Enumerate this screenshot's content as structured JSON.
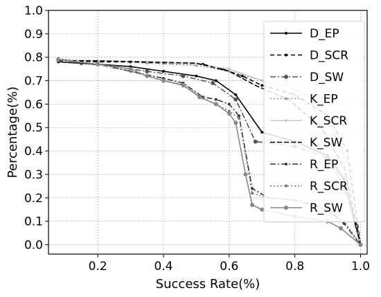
{
  "chart_data": {
    "type": "line",
    "xlabel": "Success Rate(%)",
    "ylabel": "Percentage(%)",
    "xlim": [
      0.05,
      1.02
    ],
    "ylim": [
      -0.04,
      1.0
    ],
    "xticks": [
      "0.2",
      "0.4",
      "0.6",
      "0.8",
      "1.0"
    ],
    "yticks": [
      "0.0",
      "0.1",
      "0.2",
      "0.3",
      "0.4",
      "0.5",
      "0.6",
      "0.7",
      "0.8",
      "0.9",
      "1.0"
    ],
    "grid": true,
    "legend_position": "right",
    "series": [
      {
        "name": "D_EP",
        "color": "#000000",
        "dash": "",
        "marker": "dot",
        "x": [
          0.08,
          0.2,
          0.3,
          0.4,
          0.5,
          0.56,
          0.62,
          0.7,
          0.8,
          0.9,
          0.95,
          1.0
        ],
        "y": [
          0.78,
          0.77,
          0.76,
          0.74,
          0.72,
          0.7,
          0.64,
          0.48,
          0.44,
          0.38,
          0.28,
          0.0
        ]
      },
      {
        "name": "D_SCR",
        "color": "#000000",
        "dash": "6,4",
        "marker": "dot",
        "x": [
          0.08,
          0.2,
          0.3,
          0.4,
          0.52,
          0.58,
          0.64,
          0.7,
          0.8,
          0.9,
          0.96,
          1.0
        ],
        "y": [
          0.79,
          0.78,
          0.78,
          0.775,
          0.77,
          0.75,
          0.72,
          0.68,
          0.64,
          0.55,
          0.4,
          0.0
        ]
      },
      {
        "name": "D_SW",
        "color": "#555555",
        "dash": "8,3,2,3",
        "marker": "circle",
        "x": [
          0.08,
          0.15,
          0.25,
          0.35,
          0.46,
          0.55,
          0.62,
          0.68,
          0.8,
          0.9,
          0.95,
          1.0
        ],
        "y": [
          0.79,
          0.775,
          0.76,
          0.74,
          0.72,
          0.69,
          0.62,
          0.44,
          0.42,
          0.37,
          0.25,
          0.0
        ]
      },
      {
        "name": "K_EP",
        "color": "#999999",
        "dash": "2,3",
        "marker": "dot",
        "x": [
          0.08,
          0.2,
          0.35,
          0.5,
          0.6,
          0.7,
          0.8,
          0.9,
          0.96,
          1.0
        ],
        "y": [
          0.79,
          0.785,
          0.775,
          0.765,
          0.74,
          0.7,
          0.64,
          0.52,
          0.35,
          0.0
        ]
      },
      {
        "name": "K_SCR",
        "color": "#c8c8c8",
        "dash": "",
        "marker": "dot",
        "x": [
          0.08,
          0.2,
          0.35,
          0.5,
          0.6,
          0.7,
          0.78,
          0.86,
          0.93,
          1.0
        ],
        "y": [
          0.79,
          0.785,
          0.78,
          0.77,
          0.75,
          0.7,
          0.68,
          0.62,
          0.5,
          0.0
        ]
      },
      {
        "name": "K_SW",
        "color": "#000000",
        "dash": "7,3",
        "marker": "none",
        "x": [
          0.08,
          0.2,
          0.35,
          0.5,
          0.6,
          0.68,
          0.78,
          0.88,
          0.95,
          1.0
        ],
        "y": [
          0.785,
          0.785,
          0.78,
          0.775,
          0.74,
          0.68,
          0.62,
          0.5,
          0.33,
          0.0
        ]
      },
      {
        "name": "R_EP",
        "color": "#333333",
        "dash": "8,3,2,3",
        "marker": "dot",
        "x": [
          0.08,
          0.2,
          0.3,
          0.4,
          0.46,
          0.52,
          0.56,
          0.6,
          0.63,
          0.67,
          0.72,
          0.8,
          0.9,
          0.95,
          1.0
        ],
        "y": [
          0.78,
          0.77,
          0.74,
          0.71,
          0.69,
          0.63,
          0.62,
          0.6,
          0.55,
          0.24,
          0.2,
          0.19,
          0.15,
          0.09,
          0.0
        ]
      },
      {
        "name": "R_SCR",
        "color": "#777777",
        "dash": "2,3",
        "marker": "dot",
        "x": [
          0.08,
          0.2,
          0.3,
          0.4,
          0.46,
          0.52,
          0.56,
          0.6,
          0.63,
          0.67,
          0.72,
          0.8,
          0.9,
          0.95,
          1.0
        ],
        "y": [
          0.795,
          0.77,
          0.74,
          0.7,
          0.685,
          0.625,
          0.6,
          0.57,
          0.54,
          0.22,
          0.2,
          0.19,
          0.16,
          0.1,
          0.0
        ]
      },
      {
        "name": "R_SW",
        "color": "#888888",
        "dash": "",
        "marker": "circle",
        "x": [
          0.08,
          0.2,
          0.3,
          0.35,
          0.4,
          0.46,
          0.51,
          0.56,
          0.6,
          0.62,
          0.65,
          0.67,
          0.7,
          0.8,
          0.9,
          0.94,
          1.0
        ],
        "y": [
          0.79,
          0.77,
          0.75,
          0.72,
          0.7,
          0.68,
          0.63,
          0.6,
          0.56,
          0.52,
          0.3,
          0.17,
          0.15,
          0.12,
          0.1,
          0.07,
          0.0
        ]
      }
    ]
  }
}
